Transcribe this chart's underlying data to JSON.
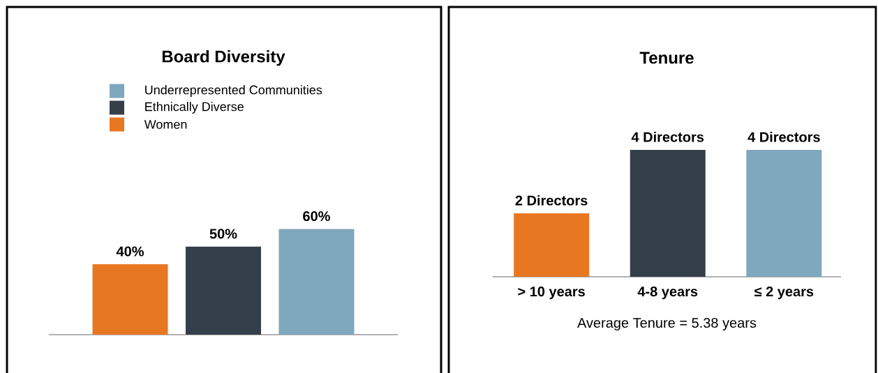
{
  "chart_data": [
    {
      "type": "bar",
      "title": "Board Diversity",
      "categories": [
        null
      ],
      "legend": "top",
      "series": [
        {
          "name": "Women",
          "color": "#e87722",
          "values": [
            40
          ],
          "value_labels": [
            "40%"
          ]
        },
        {
          "name": "Ethnically Diverse",
          "color": "#353f4a",
          "values": [
            50
          ],
          "value_labels": [
            "50%"
          ]
        },
        {
          "name": "Underrepresented Communities",
          "color": "#7fa7bd",
          "values": [
            60
          ],
          "value_labels": [
            "60%"
          ]
        }
      ]
    },
    {
      "type": "bar",
      "title": "Tenure",
      "categories": [
        "> 10 years",
        "4-8 years",
        "≤ 2 years"
      ],
      "values": [
        2,
        4,
        4
      ],
      "colors": [
        "#e87722",
        "#353f4a",
        "#7fa7bd"
      ],
      "value_labels": [
        "2 Directors",
        "4 Directors",
        "4 Directors"
      ],
      "annotations": [
        "Average Tenure = 5.38 years"
      ]
    }
  ]
}
